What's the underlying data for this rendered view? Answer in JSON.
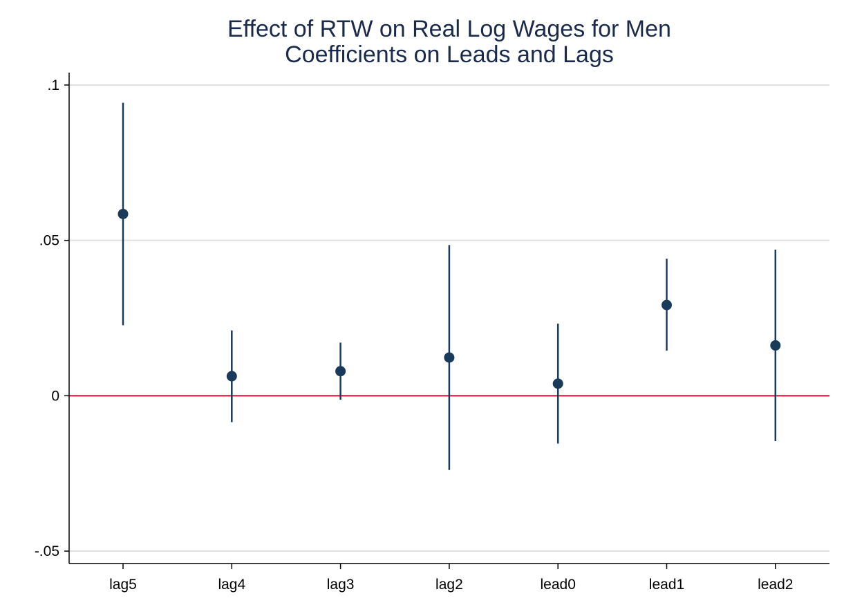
{
  "chart_data": {
    "type": "scatter",
    "title": "Effect of RTW on Real Log Wages for Men",
    "subtitle": "Coefficients on Leads and Lags",
    "categories": [
      "lag5",
      "lag4",
      "lag3",
      "lag2",
      "lead0",
      "lead1",
      "lead2"
    ],
    "values": [
      0.0585,
      0.0063,
      0.0079,
      0.0123,
      0.0039,
      0.0292,
      0.0162
    ],
    "ci_lower": [
      0.0227,
      -0.0085,
      -0.0013,
      -0.0239,
      -0.0154,
      0.0145,
      -0.0146
    ],
    "ci_upper": [
      0.0943,
      0.021,
      0.0171,
      0.0485,
      0.0232,
      0.0441,
      0.047
    ],
    "ylim": [
      -0.054,
      0.104
    ],
    "yticks": [
      -0.05,
      0,
      0.05,
      0.1
    ],
    "ytick_labels": [
      "-.05",
      "0",
      ".05",
      ".1"
    ],
    "reference_line": 0,
    "grid": true,
    "xlabel": "",
    "ylabel": "",
    "colors": {
      "point": "#1a3a5c",
      "ci": "#1a3a5c",
      "reference_line": "#c8102e",
      "grid": "#e0e0e0",
      "axis": "#000000",
      "title": "#1a2a4a"
    }
  }
}
